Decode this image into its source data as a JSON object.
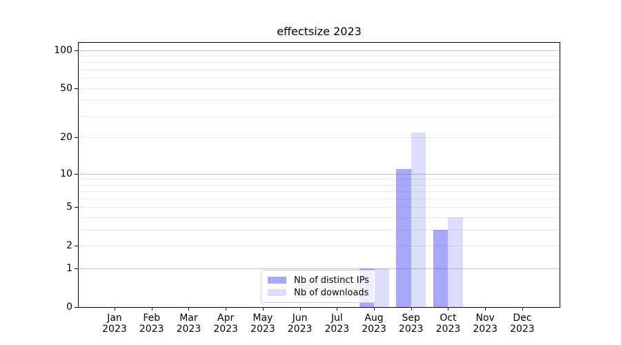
{
  "title": "effectsize 2023",
  "chart_data": {
    "type": "bar",
    "title": "effectsize 2023",
    "x_tick_months": [
      "Jan",
      "Feb",
      "Mar",
      "Apr",
      "May",
      "Jun",
      "Jul",
      "Aug",
      "Sep",
      "Oct",
      "Nov",
      "Dec"
    ],
    "x_tick_year": "2023",
    "y_ticks": [
      0,
      1,
      2,
      5,
      10,
      20,
      50,
      100
    ],
    "y_scale": "log10(1+value), 0 at baseline",
    "ylim": [
      0,
      114
    ],
    "grid": "on",
    "y_gridlines_major": [
      1,
      10,
      100
    ],
    "y_gridlines_minor": [
      2,
      3,
      4,
      5,
      6,
      7,
      8,
      9,
      20,
      30,
      40,
      50,
      60,
      70,
      80,
      90
    ],
    "categories": [
      "Jan 2023",
      "Feb 2023",
      "Mar 2023",
      "Apr 2023",
      "May 2023",
      "Jun 2023",
      "Jul 2023",
      "Aug 2023",
      "Sep 2023",
      "Oct 2023",
      "Nov 2023",
      "Dec 2023"
    ],
    "series": [
      {
        "name": "Nb of distinct IPs",
        "values": [
          0,
          0,
          0,
          0,
          0,
          0,
          0,
          1,
          11,
          3,
          0,
          0
        ],
        "color": "#6060f8",
        "fill_alpha": 0.55
      },
      {
        "name": "Nb of downloads",
        "values": [
          0,
          0,
          0,
          0,
          0,
          0,
          0,
          1,
          22,
          4,
          0,
          0
        ],
        "color": "#6060f8",
        "fill_alpha": 0.22
      }
    ],
    "legend": {
      "position": "bottom-center",
      "items": [
        "Nb of distinct IPs",
        "Nb of downloads"
      ]
    },
    "colors": {
      "bar_dark_on_white": "#aaaaf8",
      "bar_light_on_white": "#dcdcfa",
      "grid_major": "#c4c4c4",
      "grid_minor": "#ebebeb",
      "spine": "#000000",
      "text": "#000000",
      "legend_border": "#cccccc"
    }
  }
}
